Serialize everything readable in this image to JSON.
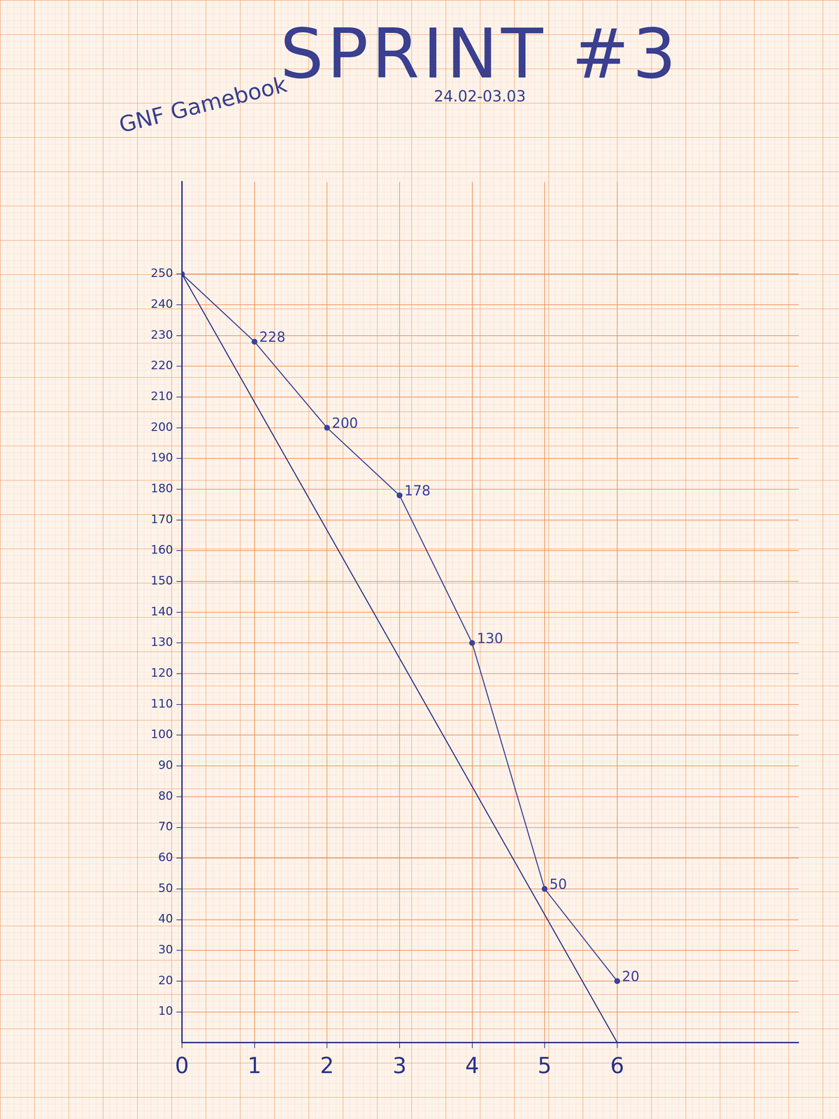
{
  "chart_data": {
    "type": "line",
    "title": "SPRINT #3",
    "subtitle": "24.02-03.03",
    "annotations": [
      "GNF Gamebook"
    ],
    "xlim": [
      0,
      8.5
    ],
    "ylim": [
      0,
      280
    ],
    "xticks": [
      0,
      1,
      2,
      3,
      4,
      5,
      6
    ],
    "yticks": [
      10,
      20,
      30,
      40,
      50,
      60,
      70,
      80,
      90,
      100,
      110,
      120,
      130,
      140,
      150,
      160,
      170,
      180,
      190,
      200,
      210,
      220,
      230,
      240,
      250
    ],
    "grid": true,
    "series": [
      {
        "x": [
          0,
          6
        ],
        "values": [
          250,
          0
        ],
        "color": "#2b318a",
        "marker": "none",
        "line_style": "solid"
      },
      {
        "x": [
          0,
          1,
          2,
          3,
          4,
          5,
          6
        ],
        "values": [
          250,
          228,
          200,
          178,
          130,
          50,
          20
        ],
        "value_labels": [
          null,
          "228",
          "200",
          "178",
          "130",
          "50",
          "20"
        ],
        "data_labels": true,
        "color": "#3b4099",
        "marker": "circle",
        "line_style": "solid"
      }
    ]
  }
}
